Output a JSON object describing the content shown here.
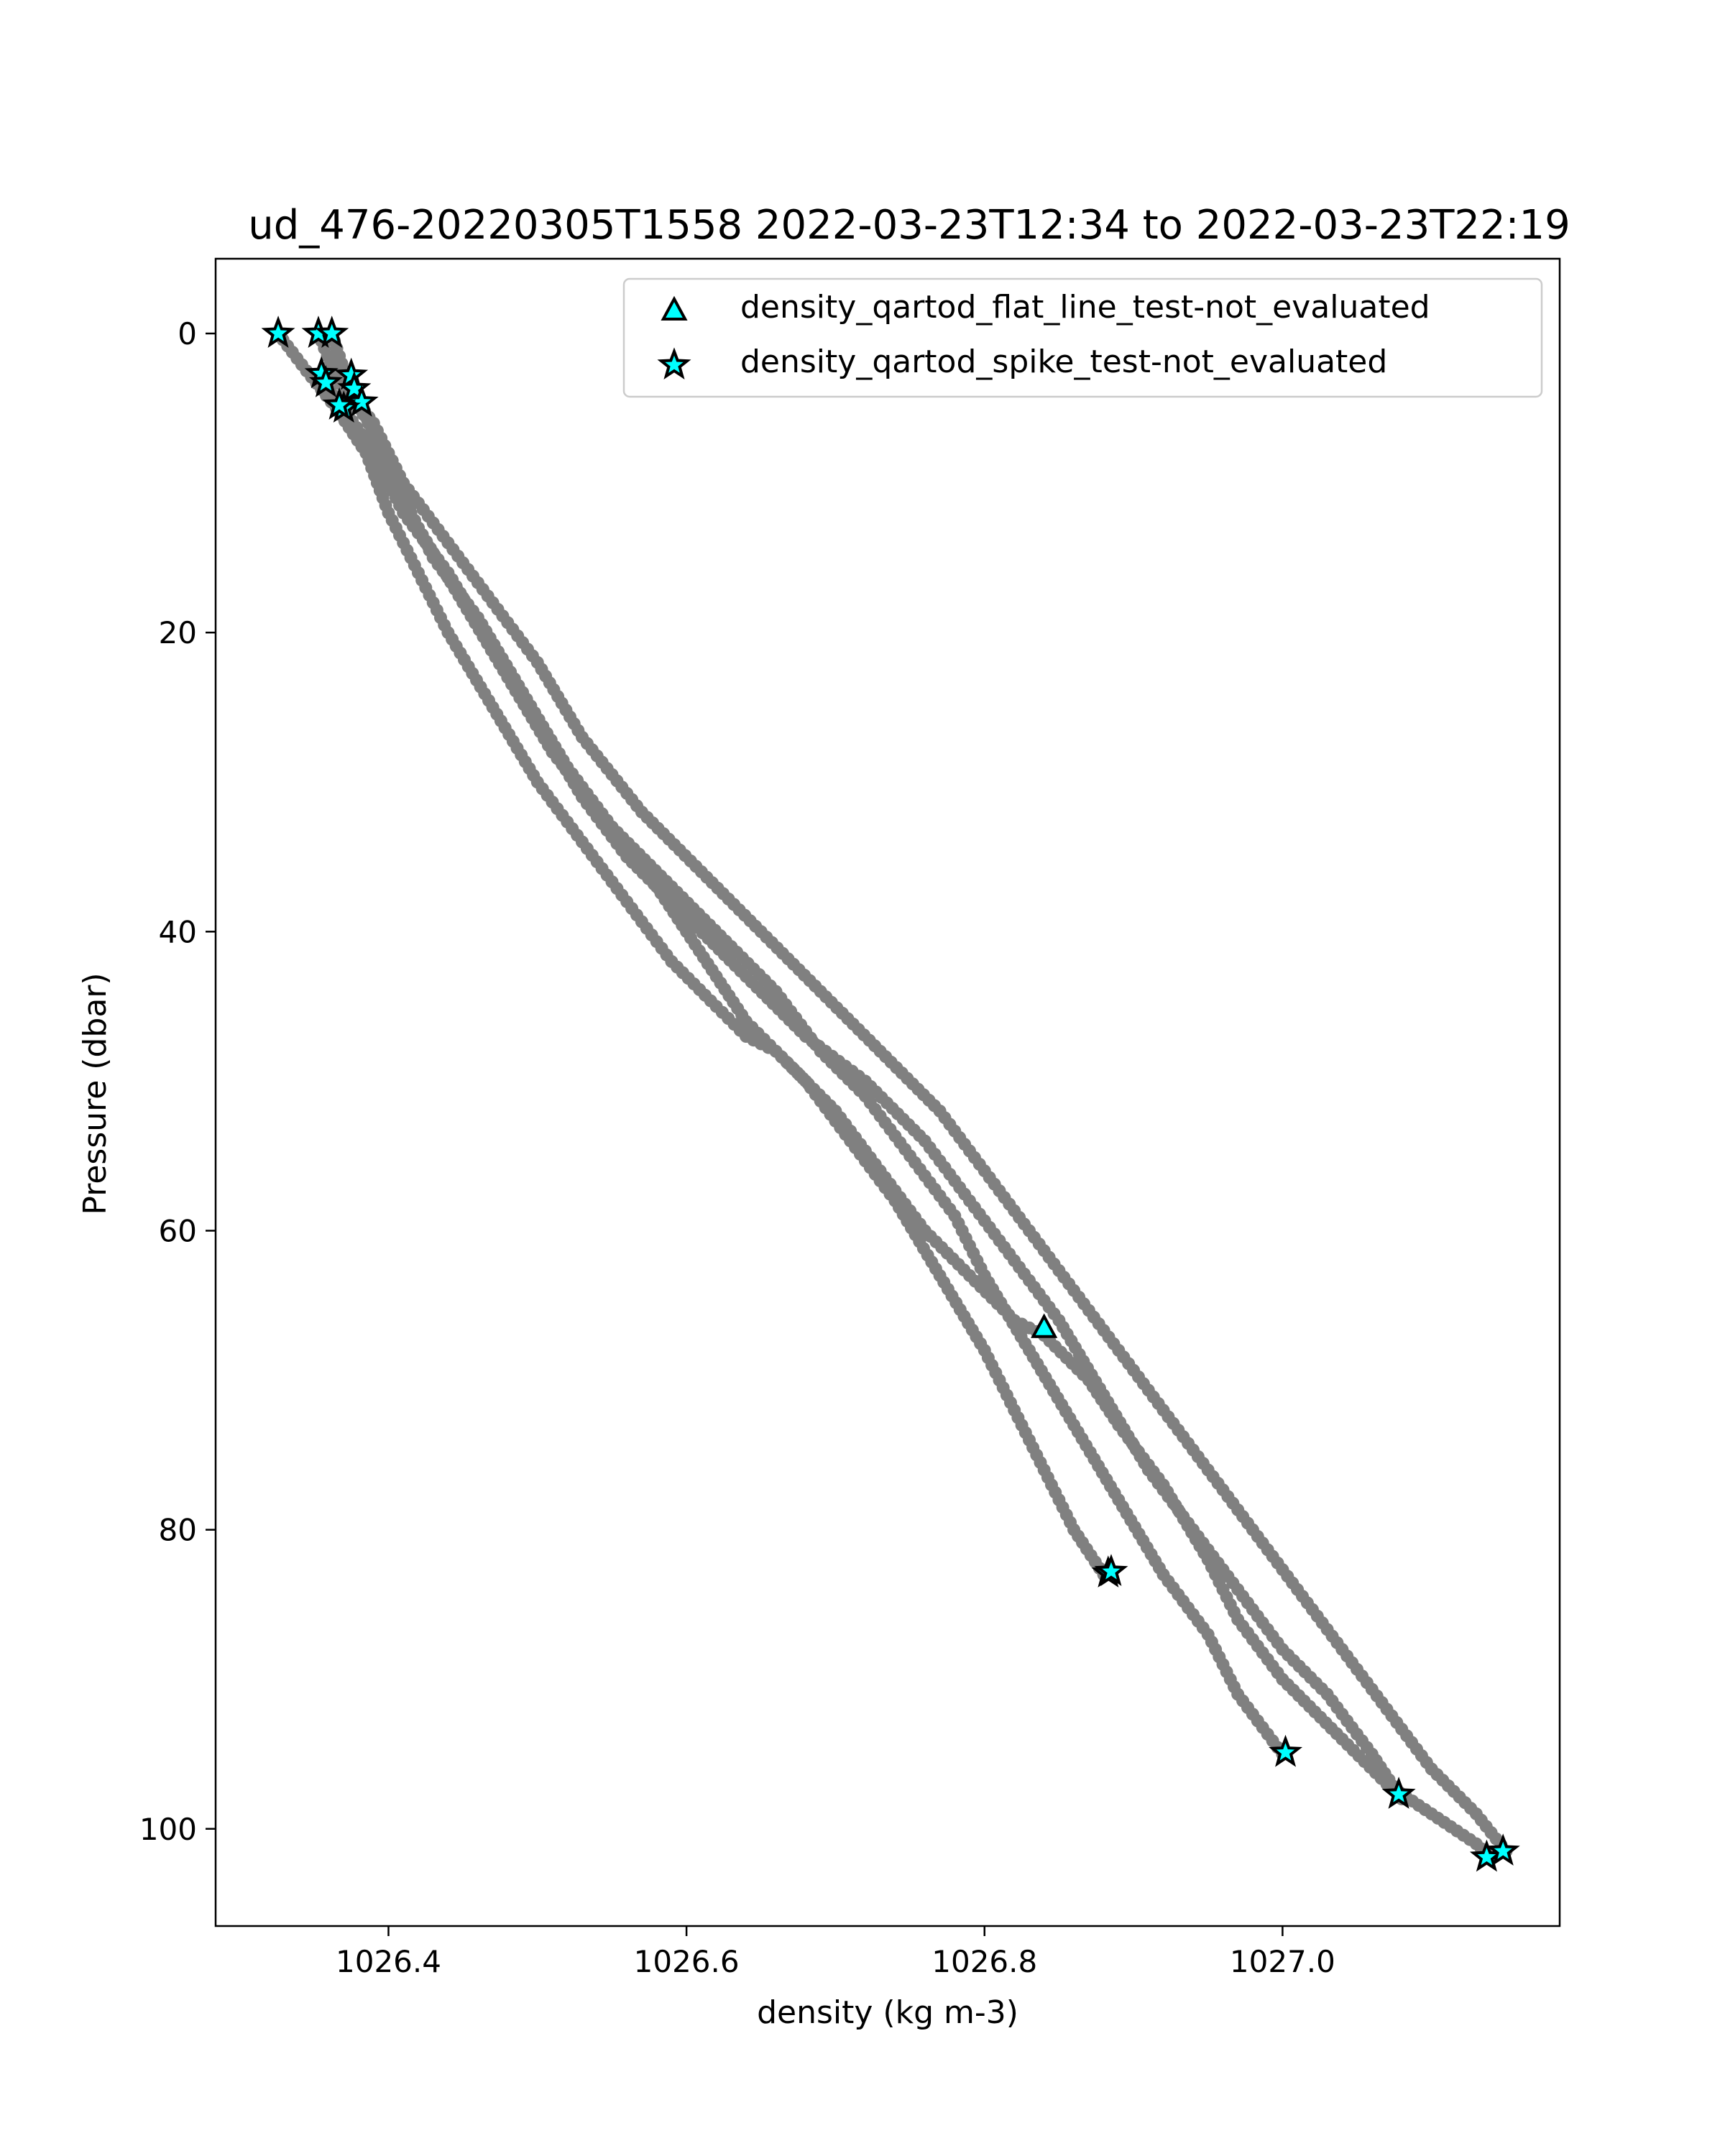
{
  "chart_data": {
    "type": "scatter",
    "title": "ud_476-20220305T1558 2022-03-23T12:34 to 2022-03-23T22:19",
    "xlabel": "density (kg m-3)",
    "ylabel": "Pressure (dbar)",
    "xlim": [
      1026.284,
      1027.186
    ],
    "ylim": [
      106.5,
      -5
    ],
    "y_inverted": true,
    "grid": false,
    "legend_position": "top-right",
    "x_ticks": [
      1026.4,
      1026.6,
      1026.8,
      1027.0
    ],
    "x_tick_labels": [
      "1026.4",
      "1026.6",
      "1026.8",
      "1027.0"
    ],
    "y_ticks": [
      0,
      20,
      40,
      60,
      80,
      100
    ],
    "y_tick_labels": [
      "0",
      "20",
      "40",
      "60",
      "80",
      "100"
    ],
    "profile_color": "#808080",
    "flag_color": "#00ffff",
    "profiles": [
      {
        "x": [
          1026.326,
          1026.345,
          1026.365,
          1026.385,
          1026.4,
          1026.42,
          1026.44,
          1026.47,
          1026.5,
          1026.53,
          1026.56,
          1026.59,
          1026.62,
          1026.64,
          1026.66,
          1026.7,
          1026.73,
          1026.76,
          1026.79,
          1026.82,
          1026.84,
          1026.87,
          1026.89,
          1026.92,
          1026.95,
          1026.97,
          1027.0,
          1027.04,
          1027.07,
          1027.1,
          1027.13,
          1027.14
        ],
        "y": [
          0,
          2.5,
          5,
          8,
          12,
          16,
          20,
          25,
          30,
          34,
          38,
          42,
          45,
          47,
          48,
          52,
          56,
          60,
          63,
          66,
          67,
          70,
          73,
          77,
          82,
          86,
          90,
          94,
          97,
          99,
          101,
          102
        ]
      },
      {
        "x": [
          1026.353,
          1026.365,
          1026.38,
          1026.395,
          1026.41,
          1026.43,
          1026.46,
          1026.49,
          1026.52,
          1026.55,
          1026.58,
          1026.6,
          1026.62,
          1026.64,
          1026.66,
          1026.68,
          1026.71,
          1026.74,
          1026.77,
          1026.8,
          1026.82,
          1026.84,
          1026.86,
          1026.88
        ],
        "y": [
          0,
          3,
          5,
          7,
          11,
          15,
          19,
          24,
          29,
          33,
          37,
          40,
          43,
          46,
          48,
          50,
          54,
          58,
          63,
          68,
          72,
          76,
          80,
          83
        ]
      },
      {
        "x": [
          1026.362,
          1026.372,
          1026.382,
          1026.4,
          1026.42,
          1026.45,
          1026.48,
          1026.51,
          1026.55,
          1026.59,
          1026.63,
          1026.66,
          1026.69,
          1026.72,
          1026.75,
          1026.78,
          1026.8,
          1026.83,
          1026.86,
          1026.89,
          1026.92,
          1026.95,
          1026.97,
          1027.0
        ],
        "y": [
          0,
          3,
          5,
          9,
          13,
          18,
          23,
          28,
          33,
          37,
          41,
          44,
          48,
          51,
          55,
          59,
          63,
          68,
          73,
          78,
          83,
          87,
          91,
          95
        ]
      },
      {
        "x": [
          1026.355,
          1026.37,
          1026.39,
          1026.41,
          1026.44,
          1026.47,
          1026.5,
          1026.53,
          1026.56,
          1026.6,
          1026.64,
          1026.68,
          1026.72,
          1026.76,
          1026.79,
          1026.82,
          1026.85,
          1026.88,
          1026.91,
          1026.94,
          1026.97,
          1027.0,
          1027.03,
          1027.06,
          1027.08
        ],
        "y": [
          3,
          5,
          8,
          12,
          16,
          21,
          26,
          31,
          35,
          39,
          43,
          47,
          50,
          54,
          58,
          62,
          66,
          71,
          76,
          80,
          84,
          88,
          91,
          95,
          98
        ]
      },
      {
        "x": [
          1026.375,
          1026.39,
          1026.41,
          1026.44,
          1026.47,
          1026.5,
          1026.53,
          1026.57,
          1026.61,
          1026.65,
          1026.69,
          1026.73,
          1026.77,
          1026.8,
          1026.83,
          1026.86,
          1026.89,
          1026.92,
          1026.95,
          1026.98,
          1027.01,
          1027.04,
          1027.07,
          1027.1,
          1027.13,
          1027.15
        ],
        "y": [
          4,
          6,
          10,
          14,
          18,
          22,
          27,
          32,
          36,
          40,
          44,
          48,
          52,
          56,
          60,
          64,
          68,
          72,
          76,
          80,
          84,
          88,
          92,
          96,
          99,
          101.5
        ]
      }
    ],
    "series": [
      {
        "name": "density_qartod_flat_line_test-not_evaluated",
        "marker": "triangle",
        "points": [
          [
            1026.84,
            66.5
          ]
        ]
      },
      {
        "name": "density_qartod_spike_test-not_evaluated",
        "marker": "star",
        "points": [
          [
            1026.326,
            0
          ],
          [
            1026.353,
            0
          ],
          [
            1026.362,
            0
          ],
          [
            1026.355,
            2.7
          ],
          [
            1026.358,
            3.3
          ],
          [
            1026.375,
            2.8
          ],
          [
            1026.377,
            3.7
          ],
          [
            1026.382,
            4.6
          ],
          [
            1026.37,
            5.0
          ],
          [
            1026.367,
            4.8
          ],
          [
            1026.883,
            82.9
          ],
          [
            1026.885,
            82.8
          ],
          [
            1027.002,
            94.9
          ],
          [
            1027.078,
            97.7
          ],
          [
            1027.137,
            101.9
          ],
          [
            1027.148,
            101.5
          ]
        ]
      }
    ]
  }
}
